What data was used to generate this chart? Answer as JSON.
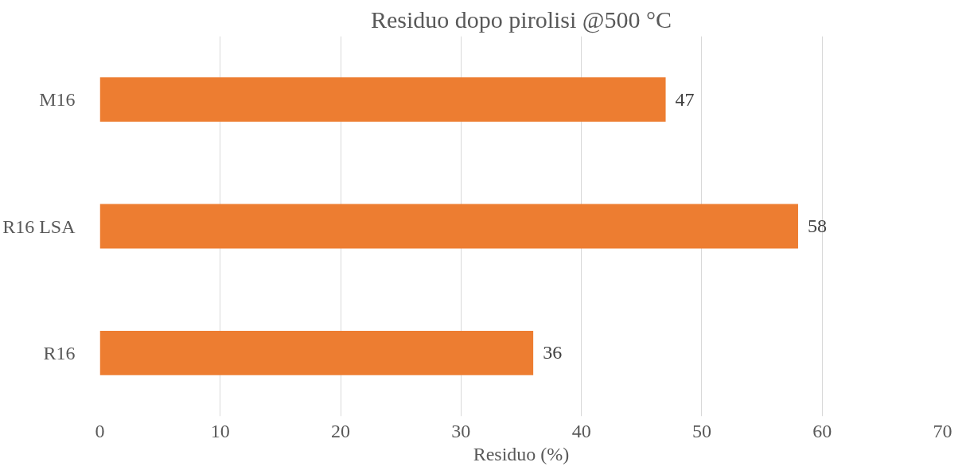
{
  "chart_data": {
    "type": "bar",
    "orientation": "horizontal",
    "title": "Residuo dopo pirolisi @500 °C",
    "xlabel": "Residuo (%)",
    "categories": [
      "M16",
      "R16 LSA",
      "R16"
    ],
    "values": [
      47,
      58,
      36
    ],
    "color": "#ed7d31",
    "xlim": [
      0,
      70
    ],
    "xticks": [
      0,
      10,
      20,
      30,
      40,
      50,
      60,
      70
    ],
    "grid": "x",
    "data_labels": true
  }
}
